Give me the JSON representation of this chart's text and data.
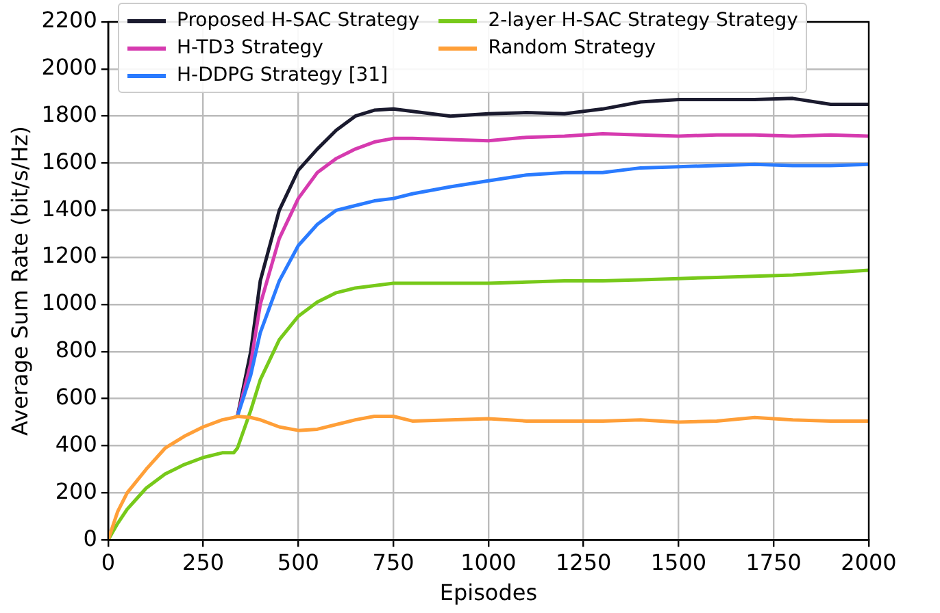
{
  "chart_data": {
    "type": "line",
    "xlabel": "Episodes",
    "ylabel": "Average Sum Rate (bit/s/Hz)",
    "x": [
      0,
      25,
      50,
      100,
      150,
      200,
      250,
      300,
      330,
      340,
      375,
      400,
      450,
      500,
      550,
      600,
      650,
      700,
      750,
      800,
      900,
      1000,
      1100,
      1200,
      1300,
      1400,
      1500,
      1600,
      1700,
      1800,
      1900,
      2000
    ],
    "xlim": [
      0,
      2000
    ],
    "xticks": [
      0,
      250,
      500,
      750,
      1000,
      1250,
      1500,
      1750,
      2000
    ],
    "ylim": [
      0,
      2200
    ],
    "yticks": [
      0,
      200,
      400,
      600,
      800,
      1000,
      1200,
      1400,
      1600,
      1800,
      2000,
      2200
    ],
    "grid": true,
    "legend": "top",
    "marker": "none",
    "line_style": "solid",
    "series": [
      {
        "name": "Proposed H-SAC Strategy",
        "color": "#1a1a2e",
        "values": [
          null,
          null,
          null,
          null,
          null,
          null,
          null,
          null,
          null,
          525,
          800,
          1100,
          1400,
          1570,
          1660,
          1740,
          1800,
          1825,
          1830,
          1820,
          1800,
          1810,
          1815,
          1810,
          1830,
          1860,
          1870,
          1870,
          1870,
          1875,
          1850,
          1850
        ]
      },
      {
        "name": "H-TD3 Strategy",
        "color": "#d63aaf",
        "values": [
          null,
          null,
          null,
          null,
          null,
          null,
          null,
          null,
          null,
          525,
          750,
          1000,
          1280,
          1450,
          1560,
          1620,
          1660,
          1690,
          1705,
          1705,
          1700,
          1695,
          1710,
          1715,
          1725,
          1720,
          1715,
          1720,
          1720,
          1715,
          1720,
          1715
        ]
      },
      {
        "name": "H-DDPG Strategy [31]",
        "color": "#2a7bff",
        "values": [
          null,
          null,
          null,
          null,
          null,
          null,
          null,
          null,
          null,
          525,
          700,
          880,
          1100,
          1250,
          1340,
          1400,
          1420,
          1440,
          1450,
          1470,
          1500,
          1525,
          1550,
          1560,
          1560,
          1580,
          1585,
          1590,
          1595,
          1590,
          1590,
          1595
        ]
      },
      {
        "name": "2-layer H-SAC Strategy Strategy",
        "color": "#77c91a",
        "values": [
          0,
          70,
          130,
          220,
          280,
          320,
          350,
          370,
          370,
          390,
          550,
          680,
          850,
          950,
          1010,
          1050,
          1070,
          1080,
          1090,
          1090,
          1090,
          1090,
          1095,
          1100,
          1100,
          1105,
          1110,
          1115,
          1120,
          1125,
          1135,
          1145
        ]
      },
      {
        "name": "Random Strategy",
        "color": "#ff9f38",
        "values": [
          0,
          120,
          200,
          300,
          390,
          440,
          480,
          510,
          520,
          525,
          520,
          510,
          480,
          465,
          470,
          490,
          510,
          525,
          525,
          505,
          510,
          515,
          505,
          505,
          505,
          510,
          500,
          505,
          520,
          510,
          505,
          505
        ]
      }
    ]
  }
}
